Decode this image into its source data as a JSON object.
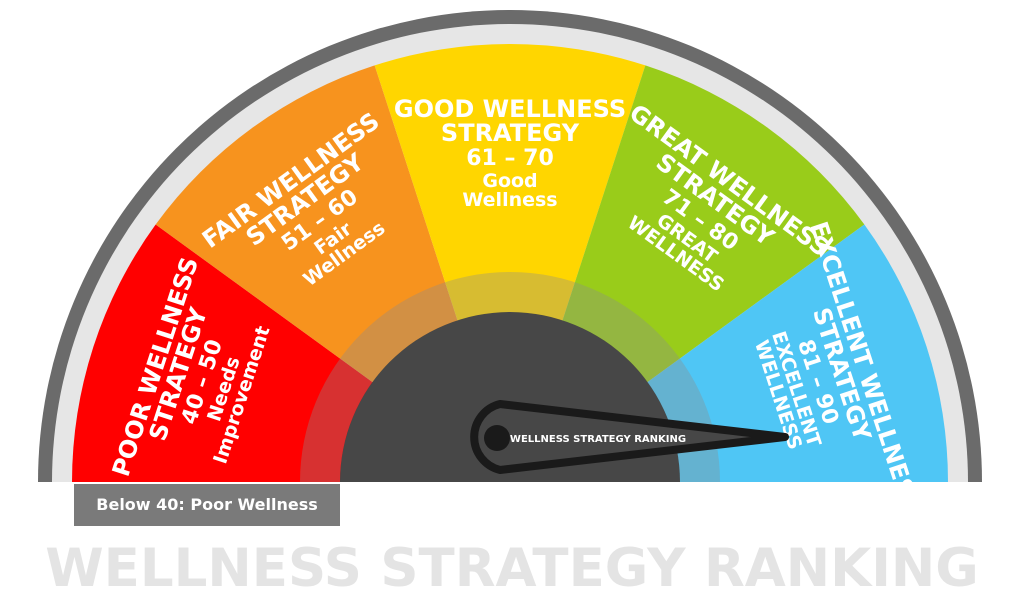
{
  "title": "WELLNESS STRATEGY RANKING",
  "needle_label": "WELLNESS STRATEGY RANKING",
  "below_label": "Below 40: Poor Wellness",
  "colors": {
    "outer_ring": "#6b6b6b",
    "inner_ring": "#e6e6e6",
    "hub": "#474747",
    "needle": "#1a1a1a"
  },
  "segments": [
    {
      "title": [
        "POOR WELLNESS",
        "STRATEGY"
      ],
      "details": [
        "40 – 50",
        "Needs",
        "Improvement"
      ],
      "color": "#ff0000"
    },
    {
      "title": [
        "FAIR WELLNESS",
        "STRATEGY"
      ],
      "details": [
        "51 – 60",
        "Fair",
        "Wellness"
      ],
      "color": "#f7931e"
    },
    {
      "title": [
        "GOOD WELLNESS",
        "STRATEGY"
      ],
      "details": [
        "61 – 70",
        "Good",
        "Wellness"
      ],
      "color": "#ffd600"
    },
    {
      "title": [
        "GREAT WELLNESS",
        "STRATEGY"
      ],
      "details": [
        "71 – 80",
        "GREAT",
        "WELLNESS"
      ],
      "color": "#99cc1a"
    },
    {
      "title": [
        "EXCELLENT WELLNESS",
        "STRATEGY"
      ],
      "details": [
        "81 – 90",
        "EXCELLENT",
        "WELLNESS"
      ],
      "color": "#4fc6f5"
    }
  ]
}
